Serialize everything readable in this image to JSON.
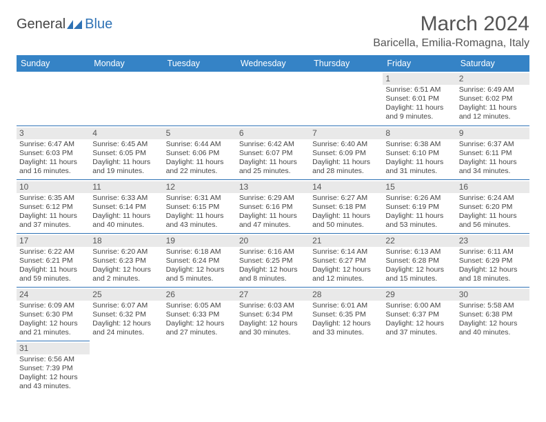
{
  "brand": {
    "word1": "General",
    "word2": "Blue"
  },
  "title": "March 2024",
  "location": "Baricella, Emilia-Romagna, Italy",
  "colors": {
    "header_bg": "#3583c6",
    "header_fg": "#ffffff",
    "cell_border": "#2e72b5",
    "daynum_bg": "#e9e9e9",
    "brand_accent": "#2e72b5",
    "text": "#444444"
  },
  "dayNames": [
    "Sunday",
    "Monday",
    "Tuesday",
    "Wednesday",
    "Thursday",
    "Friday",
    "Saturday"
  ],
  "grid": [
    [
      {
        "blank": true
      },
      {
        "blank": true
      },
      {
        "blank": true
      },
      {
        "blank": true
      },
      {
        "blank": true
      },
      {
        "day": "1",
        "sunrise": "Sunrise: 6:51 AM",
        "sunset": "Sunset: 6:01 PM",
        "daylight": "Daylight: 11 hours and 9 minutes."
      },
      {
        "day": "2",
        "sunrise": "Sunrise: 6:49 AM",
        "sunset": "Sunset: 6:02 PM",
        "daylight": "Daylight: 11 hours and 12 minutes."
      }
    ],
    [
      {
        "day": "3",
        "sunrise": "Sunrise: 6:47 AM",
        "sunset": "Sunset: 6:03 PM",
        "daylight": "Daylight: 11 hours and 16 minutes."
      },
      {
        "day": "4",
        "sunrise": "Sunrise: 6:45 AM",
        "sunset": "Sunset: 6:05 PM",
        "daylight": "Daylight: 11 hours and 19 minutes."
      },
      {
        "day": "5",
        "sunrise": "Sunrise: 6:44 AM",
        "sunset": "Sunset: 6:06 PM",
        "daylight": "Daylight: 11 hours and 22 minutes."
      },
      {
        "day": "6",
        "sunrise": "Sunrise: 6:42 AM",
        "sunset": "Sunset: 6:07 PM",
        "daylight": "Daylight: 11 hours and 25 minutes."
      },
      {
        "day": "7",
        "sunrise": "Sunrise: 6:40 AM",
        "sunset": "Sunset: 6:09 PM",
        "daylight": "Daylight: 11 hours and 28 minutes."
      },
      {
        "day": "8",
        "sunrise": "Sunrise: 6:38 AM",
        "sunset": "Sunset: 6:10 PM",
        "daylight": "Daylight: 11 hours and 31 minutes."
      },
      {
        "day": "9",
        "sunrise": "Sunrise: 6:37 AM",
        "sunset": "Sunset: 6:11 PM",
        "daylight": "Daylight: 11 hours and 34 minutes."
      }
    ],
    [
      {
        "day": "10",
        "sunrise": "Sunrise: 6:35 AM",
        "sunset": "Sunset: 6:12 PM",
        "daylight": "Daylight: 11 hours and 37 minutes."
      },
      {
        "day": "11",
        "sunrise": "Sunrise: 6:33 AM",
        "sunset": "Sunset: 6:14 PM",
        "daylight": "Daylight: 11 hours and 40 minutes."
      },
      {
        "day": "12",
        "sunrise": "Sunrise: 6:31 AM",
        "sunset": "Sunset: 6:15 PM",
        "daylight": "Daylight: 11 hours and 43 minutes."
      },
      {
        "day": "13",
        "sunrise": "Sunrise: 6:29 AM",
        "sunset": "Sunset: 6:16 PM",
        "daylight": "Daylight: 11 hours and 47 minutes."
      },
      {
        "day": "14",
        "sunrise": "Sunrise: 6:27 AM",
        "sunset": "Sunset: 6:18 PM",
        "daylight": "Daylight: 11 hours and 50 minutes."
      },
      {
        "day": "15",
        "sunrise": "Sunrise: 6:26 AM",
        "sunset": "Sunset: 6:19 PM",
        "daylight": "Daylight: 11 hours and 53 minutes."
      },
      {
        "day": "16",
        "sunrise": "Sunrise: 6:24 AM",
        "sunset": "Sunset: 6:20 PM",
        "daylight": "Daylight: 11 hours and 56 minutes."
      }
    ],
    [
      {
        "day": "17",
        "sunrise": "Sunrise: 6:22 AM",
        "sunset": "Sunset: 6:21 PM",
        "daylight": "Daylight: 11 hours and 59 minutes."
      },
      {
        "day": "18",
        "sunrise": "Sunrise: 6:20 AM",
        "sunset": "Sunset: 6:23 PM",
        "daylight": "Daylight: 12 hours and 2 minutes."
      },
      {
        "day": "19",
        "sunrise": "Sunrise: 6:18 AM",
        "sunset": "Sunset: 6:24 PM",
        "daylight": "Daylight: 12 hours and 5 minutes."
      },
      {
        "day": "20",
        "sunrise": "Sunrise: 6:16 AM",
        "sunset": "Sunset: 6:25 PM",
        "daylight": "Daylight: 12 hours and 8 minutes."
      },
      {
        "day": "21",
        "sunrise": "Sunrise: 6:14 AM",
        "sunset": "Sunset: 6:27 PM",
        "daylight": "Daylight: 12 hours and 12 minutes."
      },
      {
        "day": "22",
        "sunrise": "Sunrise: 6:13 AM",
        "sunset": "Sunset: 6:28 PM",
        "daylight": "Daylight: 12 hours and 15 minutes."
      },
      {
        "day": "23",
        "sunrise": "Sunrise: 6:11 AM",
        "sunset": "Sunset: 6:29 PM",
        "daylight": "Daylight: 12 hours and 18 minutes."
      }
    ],
    [
      {
        "day": "24",
        "sunrise": "Sunrise: 6:09 AM",
        "sunset": "Sunset: 6:30 PM",
        "daylight": "Daylight: 12 hours and 21 minutes."
      },
      {
        "day": "25",
        "sunrise": "Sunrise: 6:07 AM",
        "sunset": "Sunset: 6:32 PM",
        "daylight": "Daylight: 12 hours and 24 minutes."
      },
      {
        "day": "26",
        "sunrise": "Sunrise: 6:05 AM",
        "sunset": "Sunset: 6:33 PM",
        "daylight": "Daylight: 12 hours and 27 minutes."
      },
      {
        "day": "27",
        "sunrise": "Sunrise: 6:03 AM",
        "sunset": "Sunset: 6:34 PM",
        "daylight": "Daylight: 12 hours and 30 minutes."
      },
      {
        "day": "28",
        "sunrise": "Sunrise: 6:01 AM",
        "sunset": "Sunset: 6:35 PM",
        "daylight": "Daylight: 12 hours and 33 minutes."
      },
      {
        "day": "29",
        "sunrise": "Sunrise: 6:00 AM",
        "sunset": "Sunset: 6:37 PM",
        "daylight": "Daylight: 12 hours and 37 minutes."
      },
      {
        "day": "30",
        "sunrise": "Sunrise: 5:58 AM",
        "sunset": "Sunset: 6:38 PM",
        "daylight": "Daylight: 12 hours and 40 minutes."
      }
    ],
    [
      {
        "day": "31",
        "sunrise": "Sunrise: 6:56 AM",
        "sunset": "Sunset: 7:39 PM",
        "daylight": "Daylight: 12 hours and 43 minutes."
      },
      {
        "blank": true
      },
      {
        "blank": true
      },
      {
        "blank": true
      },
      {
        "blank": true
      },
      {
        "blank": true
      },
      {
        "blank": true
      }
    ]
  ]
}
